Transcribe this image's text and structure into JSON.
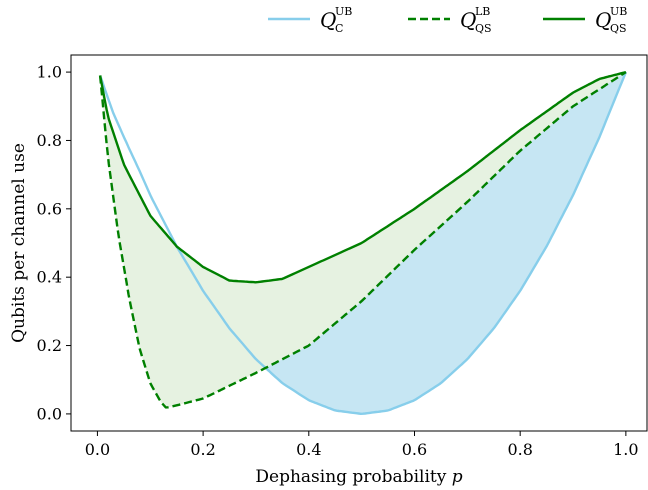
{
  "chart_data": {
    "type": "line",
    "title": "",
    "xlabel": "Dephasing probability",
    "xlabel_symbol": "p",
    "ylabel": "Qubits per channel use",
    "xlim": [
      -0.05,
      1.04
    ],
    "ylim": [
      -0.05,
      1.05
    ],
    "xticks": [
      "0.0",
      "0.2",
      "0.4",
      "0.6",
      "0.8",
      "1.0"
    ],
    "yticks": [
      "0.0",
      "0.2",
      "0.4",
      "0.6",
      "0.8",
      "1.0"
    ],
    "grid": false,
    "legend_position": "top-right, outside above plot",
    "series": [
      {
        "name": "Q_C^UB",
        "legend_main": "Q",
        "legend_sup": "UB",
        "legend_sub": "C",
        "color": "#87ceeb",
        "style": "solid",
        "x": [
          0.005,
          0.03,
          0.05,
          0.08,
          0.1,
          0.15,
          0.2,
          0.25,
          0.3,
          0.35,
          0.4,
          0.45,
          0.5,
          0.55,
          0.6,
          0.65,
          0.7,
          0.75,
          0.8,
          0.85,
          0.9,
          0.95,
          1.0
        ],
        "y": [
          0.99,
          0.88,
          0.81,
          0.71,
          0.64,
          0.49,
          0.36,
          0.25,
          0.16,
          0.09,
          0.04,
          0.01,
          0.0,
          0.01,
          0.04,
          0.09,
          0.16,
          0.25,
          0.36,
          0.49,
          0.64,
          0.81,
          1.0
        ]
      },
      {
        "name": "Q_QS^LB",
        "legend_main": "Q",
        "legend_sup": "LB",
        "legend_sub": "QS",
        "color": "#008000",
        "style": "dashed",
        "x": [
          0.005,
          0.02,
          0.04,
          0.06,
          0.08,
          0.1,
          0.12,
          0.13,
          0.15,
          0.2,
          0.3,
          0.4,
          0.5,
          0.6,
          0.7,
          0.8,
          0.9,
          0.95,
          1.0
        ],
        "y": [
          0.99,
          0.75,
          0.52,
          0.34,
          0.19,
          0.09,
          0.035,
          0.018,
          0.025,
          0.045,
          0.12,
          0.2,
          0.33,
          0.48,
          0.62,
          0.77,
          0.9,
          0.95,
          1.0
        ]
      },
      {
        "name": "Q_QS^UB",
        "legend_main": "Q",
        "legend_sup": "UB",
        "legend_sub": "QS",
        "color": "#008000",
        "style": "solid",
        "x": [
          0.005,
          0.02,
          0.05,
          0.1,
          0.15,
          0.2,
          0.25,
          0.3,
          0.35,
          0.4,
          0.5,
          0.6,
          0.7,
          0.8,
          0.9,
          0.95,
          1.0
        ],
        "y": [
          0.99,
          0.87,
          0.73,
          0.58,
          0.49,
          0.43,
          0.39,
          0.385,
          0.395,
          0.43,
          0.5,
          0.6,
          0.71,
          0.83,
          0.94,
          0.98,
          1.0
        ]
      }
    ],
    "fills": [
      {
        "between": [
          "Q_QS^LB",
          "Q_QS^UB"
        ],
        "color": "#e6f2e1"
      },
      {
        "between": [
          "Q_C^UB",
          "Q_QS^LB"
        ],
        "where": "Q_C^UB below Q_QS^LB",
        "color": "#c6e6f3"
      }
    ]
  }
}
